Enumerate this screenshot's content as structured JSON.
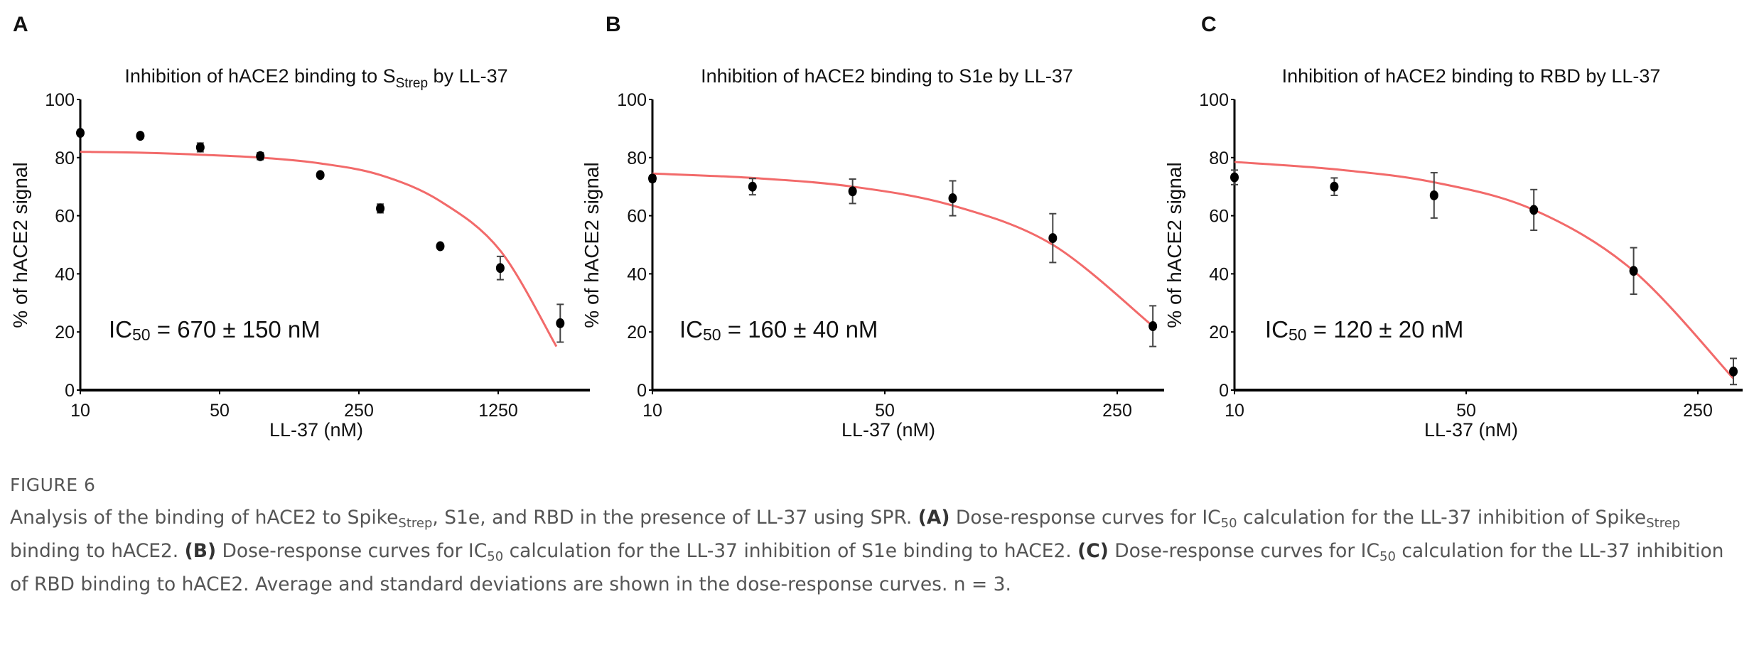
{
  "chart_data": [
    {
      "type": "scatter",
      "panel_letter": "A",
      "title": "Inhibition of hACE2 binding to S",
      "title_sub": "Strep",
      "title_suffix": " by LL-37",
      "xlabel": "LL-37 (nM)",
      "ylabel": "% of hACE2 signal",
      "xscale": "log",
      "xticks": [
        10,
        50,
        250,
        1250
      ],
      "xtick_labels": [
        "10",
        "50",
        "250",
        "1250"
      ],
      "yticks": [
        0,
        20,
        40,
        60,
        80,
        100
      ],
      "ytick_labels": [
        "0",
        "20",
        "40",
        "60",
        "80",
        "100"
      ],
      "ylim": [
        0,
        100
      ],
      "annotation": "IC50 = 670 ± 150 nM",
      "annotation_parts": [
        "IC",
        "50",
        " = 670 ± 150 nM"
      ],
      "x": [
        10,
        20,
        40,
        80,
        160,
        320,
        640,
        1280,
        2560
      ],
      "y": [
        88.5,
        87.5,
        83.5,
        80.5,
        74,
        62.5,
        49.5,
        42,
        23
      ],
      "err": [
        0.8,
        0.8,
        1.5,
        1.2,
        0.8,
        1.5,
        0.8,
        4,
        6.5
      ],
      "fit_curve": [
        [
          10,
          82
        ],
        [
          20,
          81.7
        ],
        [
          40,
          81
        ],
        [
          80,
          80
        ],
        [
          160,
          78
        ],
        [
          320,
          74
        ],
        [
          640,
          65
        ],
        [
          1280,
          48
        ],
        [
          2450,
          15
        ]
      ],
      "point_color": "#000000",
      "curve_color": "#f26a6a"
    },
    {
      "type": "scatter",
      "panel_letter": "B",
      "title": "Inhibition of hACE2 binding to S1e by LL-37",
      "title_sub": "",
      "title_suffix": "",
      "xlabel": "LL-37 (nM)",
      "ylabel": "% of hACE2 signal",
      "xscale": "log",
      "xticks": [
        10,
        50,
        250
      ],
      "xtick_labels": [
        "10",
        "50",
        "250"
      ],
      "yticks": [
        0,
        20,
        40,
        60,
        80,
        100
      ],
      "ytick_labels": [
        "0",
        "20",
        "40",
        "60",
        "80",
        "100"
      ],
      "ylim": [
        0,
        100
      ],
      "annotation": "IC50 = 160 ± 40 nM",
      "annotation_parts": [
        "IC",
        "50",
        " = 160 ± 40 nM"
      ],
      "x": [
        10,
        20,
        40,
        80,
        160,
        320
      ],
      "y": [
        72.8,
        70,
        68.4,
        66,
        52.3,
        22
      ],
      "err": [
        1,
        2.8,
        4.2,
        6,
        8.4,
        7
      ],
      "fit_curve": [
        [
          10,
          74.5
        ],
        [
          20,
          73
        ],
        [
          40,
          70
        ],
        [
          80,
          63.5
        ],
        [
          160,
          50
        ],
        [
          320,
          22
        ]
      ],
      "point_color": "#000000",
      "curve_color": "#f26a6a"
    },
    {
      "type": "scatter",
      "panel_letter": "C",
      "title": "Inhibition of hACE2 binding to RBD by LL-37",
      "title_sub": "",
      "title_suffix": "",
      "xlabel": "LL-37 (nM)",
      "ylabel": "% of hACE2 signal",
      "xscale": "log",
      "xticks": [
        10,
        50,
        250
      ],
      "xtick_labels": [
        "10",
        "50",
        "250"
      ],
      "yticks": [
        0,
        20,
        40,
        60,
        80,
        100
      ],
      "ytick_labels": [
        "0",
        "20",
        "40",
        "60",
        "80",
        "100"
      ],
      "ylim": [
        0,
        100
      ],
      "annotation": "IC50 = 120 ± 20 nM",
      "annotation_parts": [
        "IC",
        "50",
        " = 120 ± 20 nM"
      ],
      "x": [
        10,
        20,
        40,
        80,
        160,
        320
      ],
      "y": [
        73.2,
        70,
        67,
        62,
        41,
        6.4
      ],
      "err": [
        2.5,
        3,
        7.8,
        7,
        8,
        4.5
      ],
      "fit_curve": [
        [
          10,
          78.5
        ],
        [
          20,
          76
        ],
        [
          40,
          71.5
        ],
        [
          80,
          62
        ],
        [
          160,
          41
        ],
        [
          320,
          4
        ]
      ],
      "point_color": "#000000",
      "curve_color": "#f26a6a"
    }
  ],
  "caption": {
    "figure_label": "FIGURE 6",
    "segments": [
      {
        "t": "Analysis of the binding of hACE2 to Spike"
      },
      {
        "t": "Strep",
        "s": "sub"
      },
      {
        "t": ", S1e, and RBD in the presence of LL-37 using SPR. "
      },
      {
        "t": "(A)",
        "s": "b"
      },
      {
        "t": " Dose-response curves for IC"
      },
      {
        "t": "50",
        "s": "sub"
      },
      {
        "t": " calculation for the LL-37 inhibition of Spike"
      },
      {
        "t": "Strep",
        "s": "sub"
      },
      {
        "t": " binding to hACE2. "
      },
      {
        "t": "(B)",
        "s": "b"
      },
      {
        "t": " Dose-response curves for IC"
      },
      {
        "t": "50",
        "s": "sub"
      },
      {
        "t": " calculation for the LL-37 inhibition of S1e binding to hACE2. "
      },
      {
        "t": "(C)",
        "s": "b"
      },
      {
        "t": " Dose-response curves for IC"
      },
      {
        "t": "50",
        "s": "sub"
      },
      {
        "t": " calculation for the LL-37 inhibition of RBD binding to hACE2. Average and standard deviations are shown in the dose-response curves. n = 3."
      }
    ]
  }
}
